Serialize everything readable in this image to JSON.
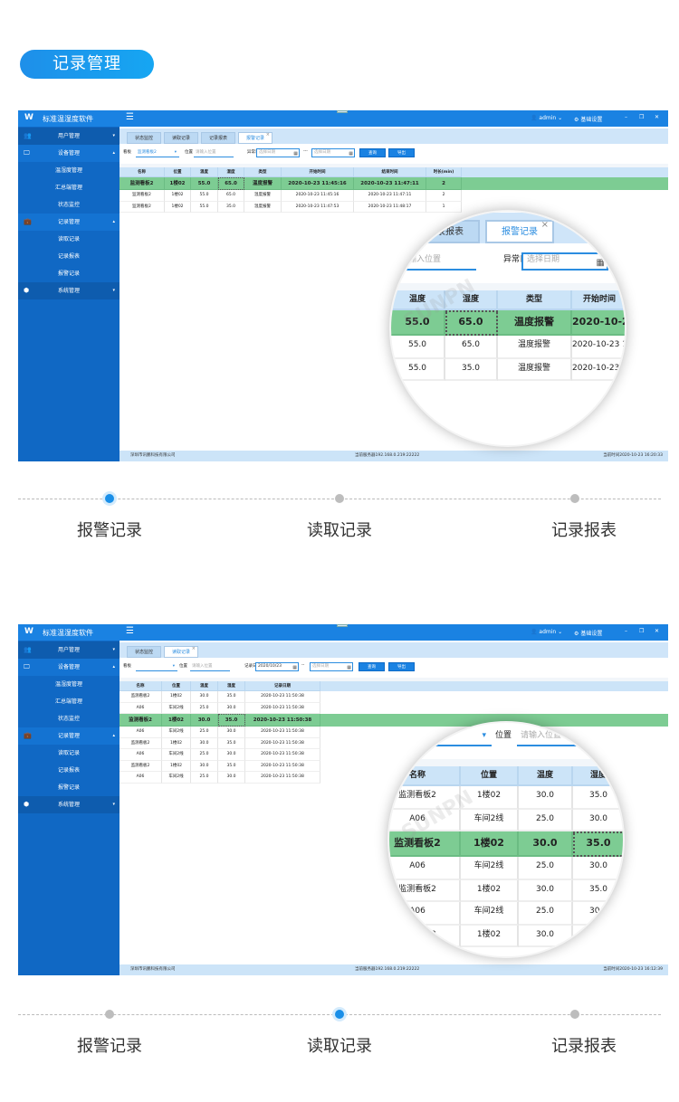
{
  "badge": "记录管理",
  "app": {
    "title": "标准温湿度软件",
    "user": "admin",
    "settings": "基础设置",
    "menu_icon": "hamburger-icon",
    "sidebar": [
      {
        "label": "用户管理",
        "icon": "users-icon",
        "expanded": false,
        "children": []
      },
      {
        "label": "设备管理",
        "icon": "monitor-icon",
        "expanded": true,
        "children": [
          "温湿度管理",
          "汇总端管理",
          "状态监控"
        ]
      },
      {
        "label": "记录管理",
        "icon": "briefcase-icon",
        "expanded": true,
        "children": [
          "读取记录",
          "记录报表",
          "报警记录"
        ]
      },
      {
        "label": "系统管理",
        "icon": "cube-icon",
        "expanded": false,
        "children": []
      }
    ],
    "company": "深圳市讯鹏科技有限公司",
    "server": "当前服务器192.168.0.219:22222"
  },
  "screens": [
    {
      "tabs": [
        "状态监控",
        "读取记录",
        "记录报表",
        "报警记录"
      ],
      "active_tab": 3,
      "filter": {
        "board_label": "看板",
        "board_value": "监测看板2",
        "location_label": "位置",
        "location_placeholder": "请输入位置",
        "date_label": "异常日期",
        "date_from": "",
        "date_placeholder": "选择日期",
        "date_sep": "---",
        "date_to": "",
        "query": "查询",
        "export": "导出"
      },
      "columns": [
        "名称",
        "位置",
        "温度",
        "湿度",
        "类型",
        "开始时间",
        "结束时间",
        "时长(min)"
      ],
      "rows": [
        [
          "监测看板2",
          "1楼02",
          "55.0",
          "65.0",
          "温度报警",
          "2020-10-23 11:45:16",
          "2020-10-23 11:47:11",
          "2"
        ],
        [
          "监测看板2",
          "1楼02",
          "55.0",
          "65.0",
          "温度报警",
          "2020-10-23 11:45:16",
          "2020-10-23 11:47:11",
          "2"
        ],
        [
          "监测看板2",
          "1楼02",
          "55.0",
          "35.0",
          "温度报警",
          "2020-10-23 11:47:53",
          "2020-10-23 11:48:17",
          "1"
        ]
      ],
      "selected_row": 0,
      "time": "当前时间2020-10-23 16:20:33"
    },
    {
      "tabs": [
        "状态监控",
        "读取记录"
      ],
      "active_tab": 1,
      "filter": {
        "board_label": "看板",
        "board_value": "",
        "location_label": "位置",
        "location_placeholder": "请输入位置",
        "date_label": "记录日期",
        "date_from": "2020/10/23",
        "date_placeholder": "选择日期",
        "date_sep": "--",
        "date_to": "",
        "query": "查询",
        "export": "导出"
      },
      "columns": [
        "名称",
        "位置",
        "温度",
        "湿度",
        "记录日期"
      ],
      "rows": [
        [
          "监测看板2",
          "1楼02",
          "30.0",
          "35.0",
          "2020-10-23 11:50:38"
        ],
        [
          "A06",
          "车间2线",
          "25.0",
          "30.0",
          "2020-10-23 11:50:38"
        ],
        [
          "监测看板2",
          "1楼02",
          "30.0",
          "35.0",
          "2020-10-23 11:50:38"
        ],
        [
          "A06",
          "车间2线",
          "25.0",
          "30.0",
          "2020-10-23 11:50:38"
        ],
        [
          "监测看板2",
          "1楼02",
          "30.0",
          "35.0",
          "2020-10-23 11:50:38"
        ],
        [
          "A06",
          "车间2线",
          "25.0",
          "30.0",
          "2020-10-23 11:50:38"
        ],
        [
          "监测看板2",
          "1楼02",
          "30.0",
          "35.0",
          "2020-10-23 11:50:38"
        ],
        [
          "A06",
          "车间2线",
          "25.0",
          "30.0",
          "2020-10-23 11:50:38"
        ]
      ],
      "selected_row": 2,
      "time": "当前时间2020-10-23 16:12:39"
    }
  ],
  "timelines": [
    {
      "items": [
        "报警记录",
        "读取记录",
        "记录报表"
      ],
      "active": 0
    },
    {
      "items": [
        "报警记录",
        "读取记录",
        "记录报表"
      ],
      "active": 1
    }
  ],
  "watermark": "SUNPN讯鹏",
  "colors": {
    "accent": "#1a82e2",
    "sidebar": "#1068c4",
    "highlight_row": "#7dcc93",
    "table_header": "#cce4f8"
  }
}
